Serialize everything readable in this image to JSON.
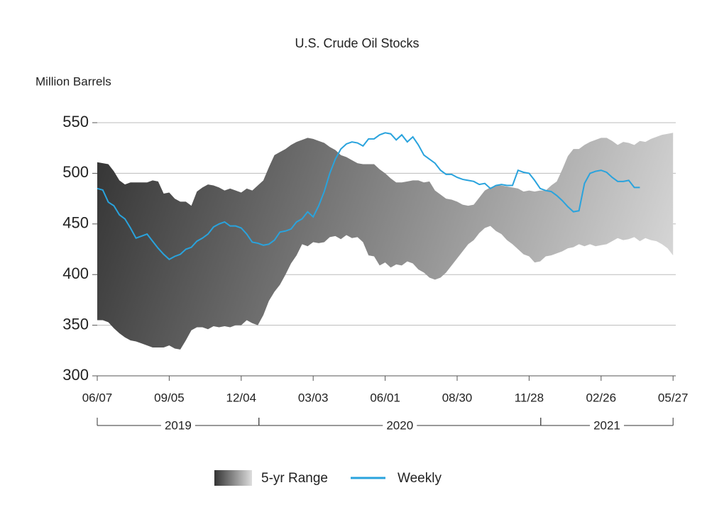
{
  "chart_data": {
    "type": "range-line",
    "title": "U.S. Crude Oil Stocks",
    "y_label": "Million Barrels",
    "ylim": [
      300,
      550
    ],
    "yticks": [
      300,
      350,
      400,
      450,
      500,
      550
    ],
    "grid": true,
    "legend": "bottom",
    "categories": [
      "06/07",
      null,
      null,
      null,
      null,
      null,
      null,
      null,
      null,
      null,
      null,
      null,
      null,
      "09/05",
      null,
      null,
      null,
      null,
      null,
      null,
      null,
      null,
      null,
      null,
      null,
      null,
      "12/04",
      null,
      null,
      null,
      null,
      null,
      null,
      null,
      null,
      null,
      null,
      null,
      null,
      "03/03",
      null,
      null,
      null,
      null,
      null,
      null,
      null,
      null,
      null,
      null,
      null,
      null,
      "06/01",
      null,
      null,
      null,
      null,
      null,
      null,
      null,
      null,
      null,
      null,
      null,
      null,
      "08/30",
      null,
      null,
      null,
      null,
      null,
      null,
      null,
      null,
      null,
      null,
      null,
      null,
      "11/28",
      null,
      null,
      null,
      null,
      null,
      null,
      null,
      null,
      null,
      null,
      null,
      null,
      "02/26",
      null,
      null,
      null,
      null,
      null,
      null,
      null,
      null,
      null,
      null,
      null,
      null,
      "05/27"
    ],
    "periods": [
      {
        "label": "2019",
        "from": 0,
        "to": 29.2
      },
      {
        "label": "2020",
        "from": 29.2,
        "to": 80.1
      },
      {
        "label": "2021",
        "from": 80.1,
        "to": 104
      }
    ],
    "series": [
      {
        "name": "5-yr Range",
        "type": "range",
        "colors": [
          "#333333",
          "#dddddd"
        ],
        "upper": [
          511,
          510,
          509,
          502,
          493,
          489,
          491,
          491,
          491,
          491,
          493,
          492,
          480,
          481,
          475,
          472,
          472,
          468,
          482,
          486,
          489,
          488,
          486,
          483,
          485,
          483,
          481,
          485,
          483,
          488,
          493,
          506,
          518,
          521,
          524,
          528,
          531,
          533,
          535,
          534,
          532,
          530,
          526,
          523,
          518,
          516,
          513,
          510,
          509,
          509,
          509,
          504,
          500,
          495,
          491,
          491,
          492,
          493,
          493,
          491,
          492,
          483,
          479,
          475,
          474,
          472,
          469,
          468,
          469,
          476,
          483,
          486,
          488,
          488,
          487,
          486,
          485,
          482,
          483,
          482,
          483,
          483,
          488,
          492,
          504,
          517,
          524,
          524,
          528,
          531,
          533,
          535,
          535,
          532,
          528,
          531,
          530,
          528,
          532,
          531,
          534,
          536,
          538,
          539,
          540
        ],
        "lower": [
          355,
          355,
          353,
          347,
          342,
          338,
          335,
          334,
          332,
          330,
          328,
          328,
          328,
          330,
          327,
          326,
          335,
          345,
          348,
          348,
          346,
          349,
          348,
          349,
          348,
          350,
          350,
          355,
          352,
          350,
          360,
          374,
          383,
          390,
          400,
          411,
          419,
          430,
          428,
          432,
          431,
          432,
          437,
          438,
          435,
          439,
          436,
          437,
          432,
          419,
          418,
          409,
          412,
          407,
          410,
          409,
          413,
          411,
          405,
          402,
          397,
          395,
          397,
          402,
          409,
          416,
          423,
          430,
          434,
          441,
          446,
          448,
          443,
          440,
          434,
          430,
          425,
          420,
          418,
          412,
          413,
          418,
          419,
          421,
          423,
          426,
          427,
          430,
          428,
          430,
          428,
          429,
          430,
          433,
          436,
          434,
          435,
          437,
          433,
          436,
          434,
          433,
          430,
          426,
          419
        ]
      },
      {
        "name": "Weekly",
        "color": "#29a3dd",
        "values": [
          485,
          483.5,
          471.5,
          468,
          459,
          455,
          446,
          436,
          438,
          440,
          433,
          426,
          420,
          415,
          418,
          420,
          425,
          427,
          433,
          436,
          440,
          447,
          450,
          452,
          448,
          448,
          446,
          440,
          432,
          431,
          429,
          430,
          434,
          442,
          443,
          445,
          452,
          455,
          462,
          457,
          468,
          482,
          500,
          514,
          524,
          529,
          531,
          530,
          527,
          534,
          534,
          538,
          540,
          539,
          533,
          538,
          531,
          536,
          528,
          518,
          514,
          510,
          503,
          499,
          499,
          496,
          494,
          493,
          492,
          489,
          490,
          485,
          488,
          489,
          488,
          488,
          503,
          501,
          500,
          493,
          485,
          483,
          482,
          478,
          473,
          467,
          462,
          463,
          490,
          500,
          502,
          503,
          501,
          496,
          492,
          492,
          493,
          486,
          486,
          null,
          null,
          null,
          null,
          null,
          null
        ]
      }
    ]
  }
}
